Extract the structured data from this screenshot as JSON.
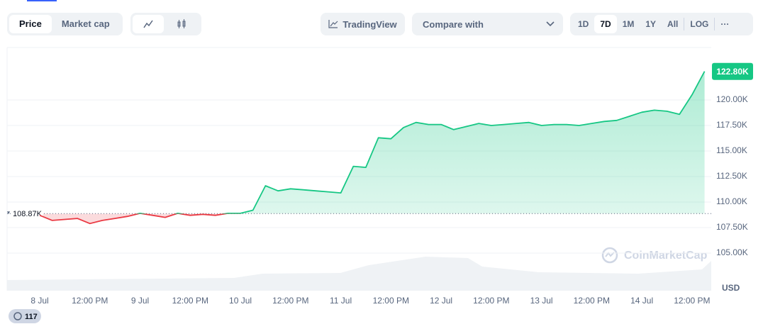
{
  "toolbar": {
    "metric_tabs": [
      "Price",
      "Market cap"
    ],
    "tradingview": "TradingView",
    "compare": "Compare with",
    "ranges": [
      "1D",
      "7D",
      "1M",
      "1Y",
      "All",
      "LOG"
    ],
    "more": "···"
  },
  "badge": "117",
  "chart_data": {
    "type": "line",
    "categories": [
      "8 Jul",
      null,
      null,
      null,
      "12:00 PM",
      null,
      null,
      null,
      "9 Jul",
      null,
      null,
      null,
      "12:00 PM",
      null,
      null,
      null,
      "10 Jul",
      null,
      null,
      null,
      "12:00 PM",
      null,
      null,
      null,
      "11 Jul",
      null,
      null,
      null,
      "12:00 PM",
      null,
      null,
      null,
      "12 Jul",
      null,
      null,
      null,
      "12:00 PM",
      null,
      null,
      null,
      "13 Jul",
      null,
      null,
      null,
      "12:00 PM",
      null,
      null,
      null,
      "14 Jul",
      null,
      null,
      null,
      "12:00 PM",
      null
    ],
    "values": [
      108700,
      108200,
      108300,
      108400,
      107900,
      108200,
      108400,
      108600,
      108900,
      108700,
      108500,
      108900,
      108700,
      108800,
      108700,
      108900,
      108900,
      109200,
      111600,
      111100,
      111300,
      111200,
      111100,
      111000,
      110900,
      113500,
      113400,
      116300,
      116200,
      117300,
      117800,
      117600,
      117600,
      117100,
      117400,
      117700,
      117500,
      117600,
      117700,
      117800,
      117500,
      117600,
      117600,
      117500,
      117700,
      117900,
      118000,
      118400,
      118800,
      119000,
      118900,
      118600,
      120500,
      122800
    ],
    "up_color": "#16c784",
    "down_color": "#ea3943",
    "reference": {
      "value": 108870,
      "label": "108.87K"
    },
    "current_price": {
      "value": 122800,
      "label": "122.80K"
    },
    "ylim": [
      101320,
      125140
    ],
    "yticks": [
      {
        "value": 105000,
        "label": "105.00K"
      },
      {
        "value": 107500,
        "label": "107.50K"
      },
      {
        "value": 110000,
        "label": "110.00K"
      },
      {
        "value": 112500,
        "label": "112.50K"
      },
      {
        "value": 115000,
        "label": "115.00K"
      },
      {
        "value": 117500,
        "label": "117.50K"
      },
      {
        "value": 120000,
        "label": "120.00K"
      }
    ],
    "y_unit": "USD",
    "watermark": "CoinMarketCap",
    "grid": true
  }
}
